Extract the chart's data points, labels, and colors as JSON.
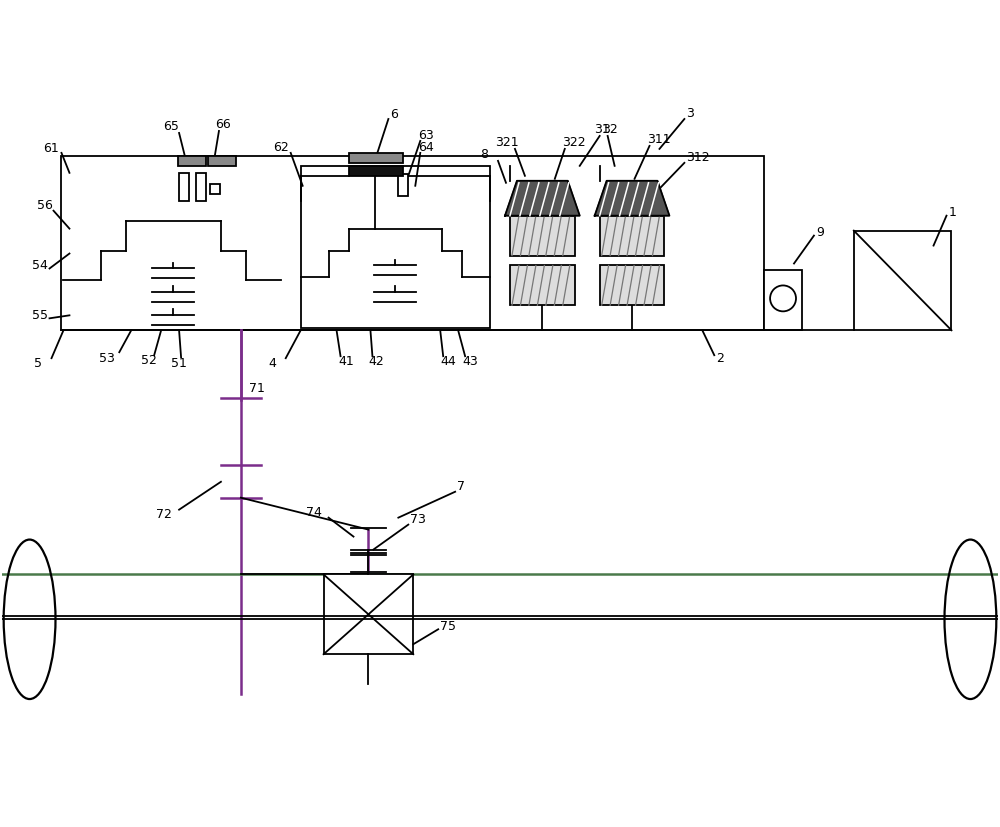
{
  "bg_color": "#ffffff",
  "line_color": "#000000",
  "label_color": "#000000",
  "green_line": "#4a7a4a",
  "purple_line": "#7b2d8b",
  "fig_width": 10.0,
  "fig_height": 8.27,
  "dpi": 100
}
